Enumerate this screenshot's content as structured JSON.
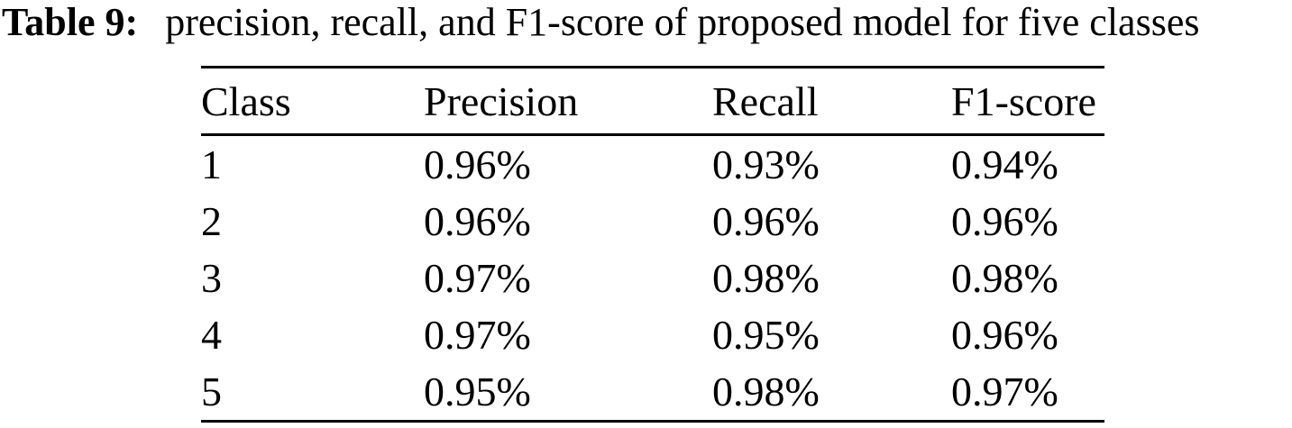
{
  "caption": {
    "label": "Table 9:",
    "text": "precision, recall, and F1-score of proposed model for five classes"
  },
  "table": {
    "headers": [
      "Class",
      "Precision",
      "Recall",
      "F1-score"
    ],
    "rows": [
      [
        "1",
        "0.96%",
        "0.93%",
        "0.94%"
      ],
      [
        "2",
        "0.96%",
        "0.96%",
        "0.96%"
      ],
      [
        "3",
        "0.97%",
        "0.98%",
        "0.98%"
      ],
      [
        "4",
        "0.97%",
        "0.95%",
        "0.96%"
      ],
      [
        "5",
        "0.95%",
        "0.98%",
        "0.97%"
      ]
    ]
  },
  "colors": {
    "text": "#000000",
    "background": "#ffffff",
    "rule": "#000000"
  }
}
